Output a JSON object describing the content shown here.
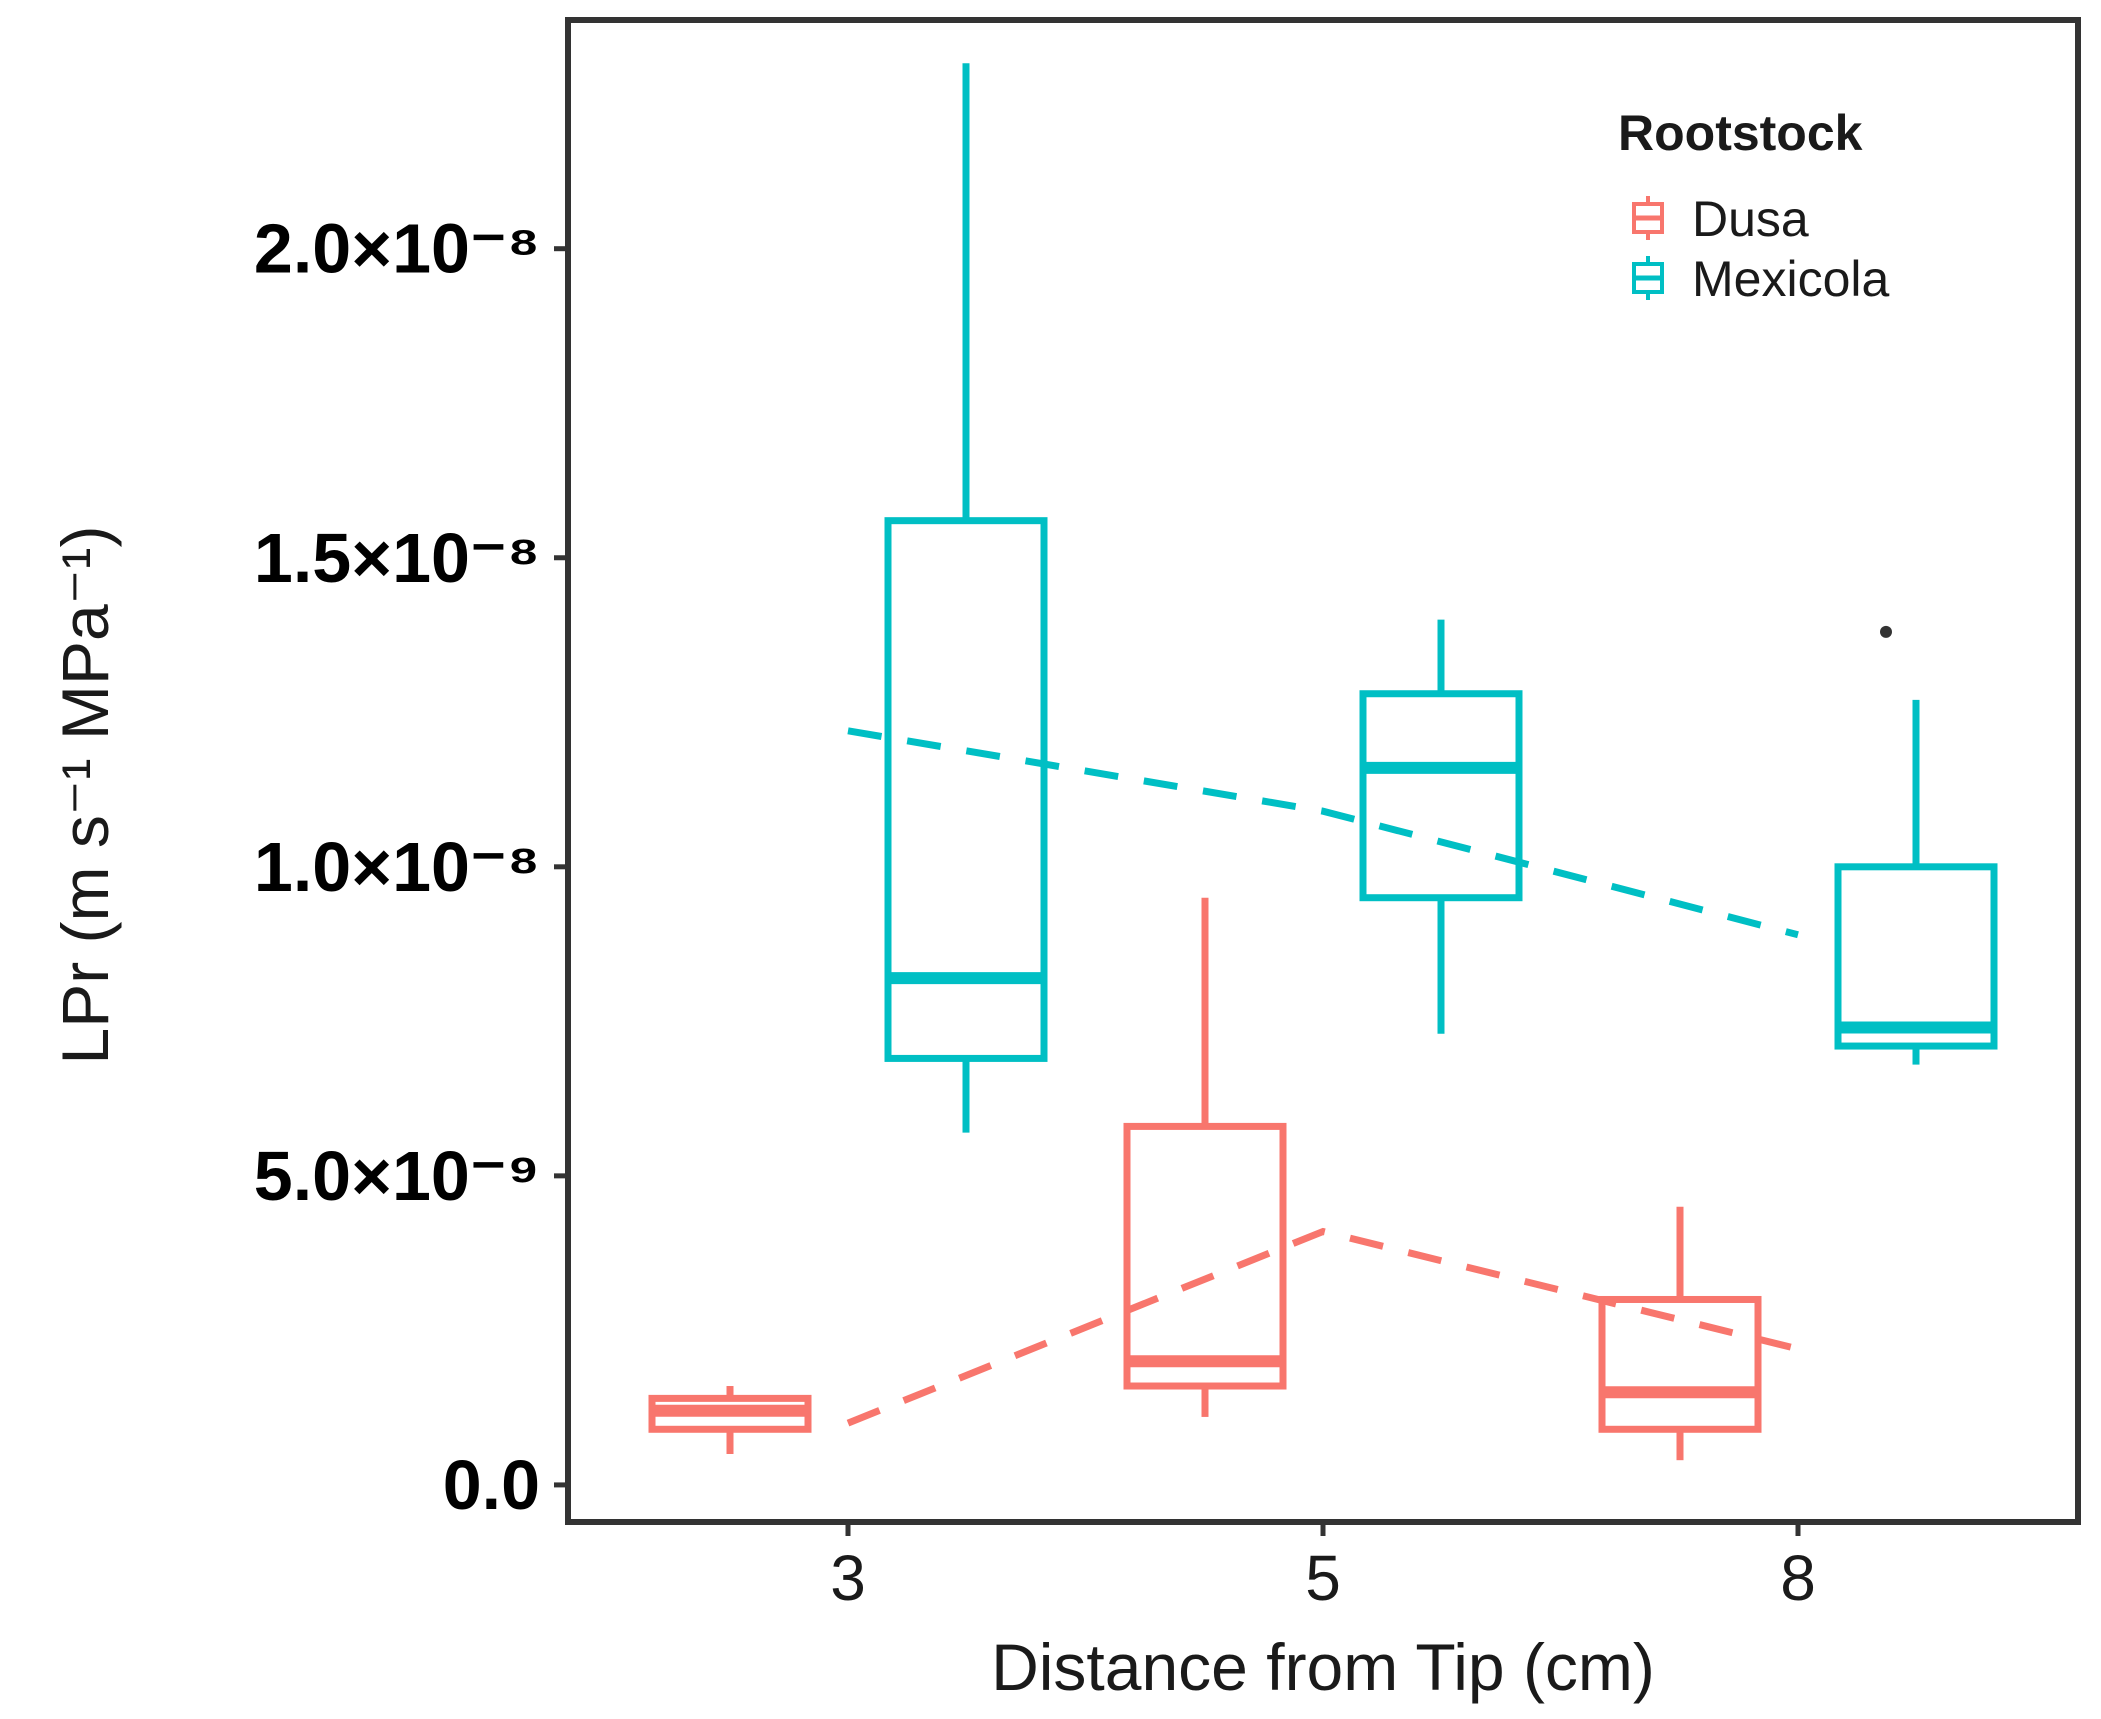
{
  "chart_data": {
    "type": "box",
    "xlabel": "Distance from Tip (cm)",
    "ylabel": "LPr (m s⁻¹ MPa⁻¹)",
    "categories": [
      "3",
      "5",
      "8"
    ],
    "ylim": [
      -6e-10,
      2.37e-08
    ],
    "y_ticks": [
      0,
      5e-09,
      1e-08,
      1.5e-08,
      2e-08
    ],
    "y_tick_labels": [
      "0.0",
      "5.0×10⁻⁹",
      "1.0×10⁻⁸",
      "1.5×10⁻⁸",
      "2.0×10⁻⁸"
    ],
    "legend": {
      "title": "Rootstock",
      "position": "top-right",
      "entries": [
        "Dusa",
        "Mexicola"
      ]
    },
    "series": [
      {
        "name": "Dusa",
        "color": "#F8766D",
        "boxes": [
          {
            "category": "3",
            "min": 5e-10,
            "q1": 9e-10,
            "median": 1.2e-09,
            "q3": 1.4e-09,
            "max": 1.6e-09
          },
          {
            "category": "5",
            "min": 1.1e-09,
            "q1": 1.6e-09,
            "median": 2e-09,
            "q3": 5.8e-09,
            "max": 9.5e-09
          },
          {
            "category": "8",
            "min": 4e-10,
            "q1": 9e-10,
            "median": 1.5e-09,
            "q3": 3e-09,
            "max": 4.5e-09
          }
        ],
        "means": [
          1e-09,
          4.1e-09,
          2.2e-09
        ],
        "outliers": []
      },
      {
        "name": "Mexicola",
        "color": "#00BFC4",
        "boxes": [
          {
            "category": "3",
            "min": 5.7e-09,
            "q1": 6.9e-09,
            "median": 8.2e-09,
            "q3": 1.56e-08,
            "max": 2.3e-08
          },
          {
            "category": "5",
            "min": 7.3e-09,
            "q1": 9.5e-09,
            "median": 1.16e-08,
            "q3": 1.28e-08,
            "max": 1.4e-08
          },
          {
            "category": "8",
            "min": 6.8e-09,
            "q1": 7.1e-09,
            "median": 7.4e-09,
            "q3": 1e-08,
            "max": 1.27e-08
          }
        ],
        "means": [
          1.22e-08,
          1.09e-08,
          8.9e-09
        ],
        "outliers": [
          {
            "category": "8",
            "value": 1.38e-08
          }
        ]
      }
    ]
  }
}
